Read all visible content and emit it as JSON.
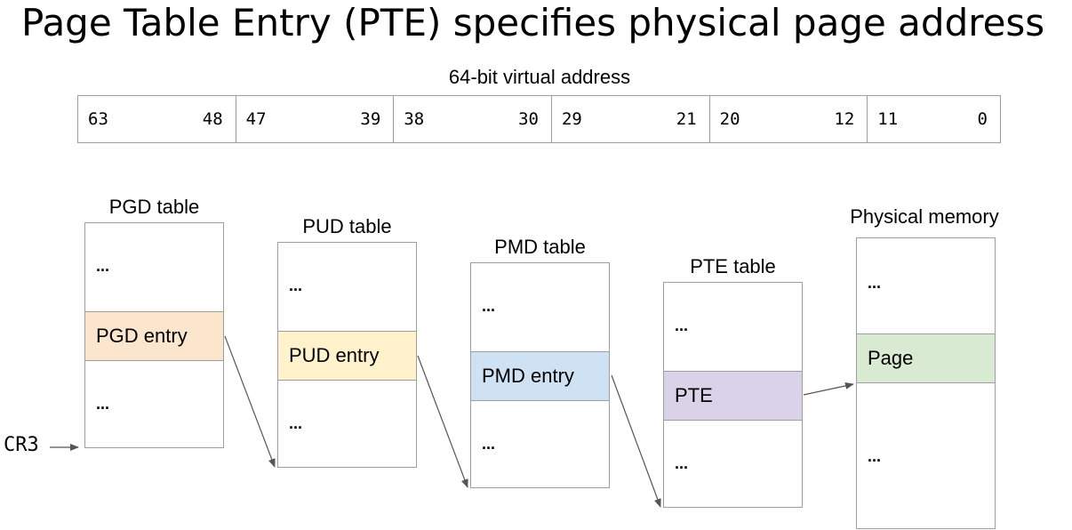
{
  "title": "Page Table Entry (PTE) specifies physical page address",
  "address": {
    "caption": "64-bit virtual address",
    "segments": [
      {
        "hi": "63",
        "lo": "48"
      },
      {
        "hi": "47",
        "lo": "39"
      },
      {
        "hi": "38",
        "lo": "30"
      },
      {
        "hi": "29",
        "lo": "21"
      },
      {
        "hi": "20",
        "lo": "12"
      },
      {
        "hi": "11",
        "lo": "0"
      }
    ]
  },
  "cr3": "CR3",
  "tables": [
    {
      "label": "PGD table",
      "top": "...",
      "entry": "PGD entry",
      "bottom": "...",
      "entry_color": "#fce5cd"
    },
    {
      "label": "PUD table",
      "top": "...",
      "entry": "PUD entry",
      "bottom": "...",
      "entry_color": "#fff2cc"
    },
    {
      "label": "PMD table",
      "top": "...",
      "entry": "PMD entry",
      "bottom": "...",
      "entry_color": "#cfe2f3"
    },
    {
      "label": "PTE table",
      "top": "...",
      "entry": "PTE",
      "bottom": "...",
      "entry_color": "#d9d2e9"
    },
    {
      "label": "Physical memory",
      "top": "...",
      "entry": "Page",
      "bottom": "...",
      "entry_color": "#d9ead3"
    }
  ],
  "colors": {
    "border": "#9e9e9e",
    "arrow": "#555555"
  }
}
